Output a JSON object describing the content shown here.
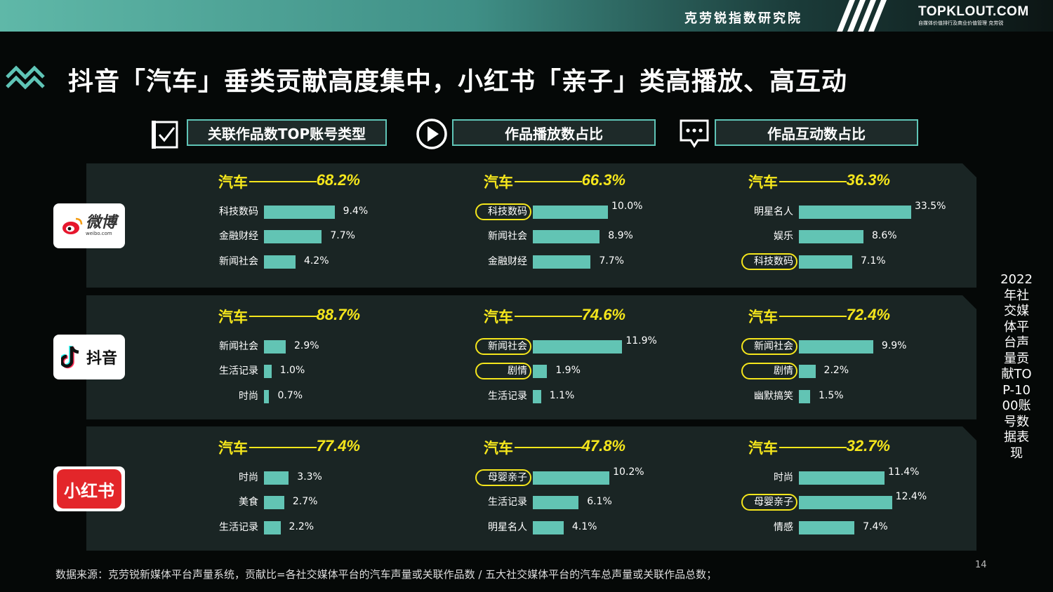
{
  "header": {
    "institute": "克劳锐指数研究院",
    "brand": "TOPKLOUT.COM",
    "brand_sub": "自媒体价值排行及商业价值管理 克劳锐"
  },
  "title": "抖音「汽车」垂类贡献高度集中，小红书「亲子」类高播放、高互动",
  "columns": [
    {
      "label": "关联作品数TOP账号类型",
      "icon": "checkbox-icon"
    },
    {
      "label": "作品播放数占比",
      "icon": "play-icon"
    },
    {
      "label": "作品互动数占比",
      "icon": "chat-icon"
    }
  ],
  "platforms": [
    {
      "name": "微博",
      "logo_text": "微博",
      "logo_sub": "weibo.com",
      "color": "#e6162d"
    },
    {
      "name": "抖音",
      "logo_text": "抖音",
      "color": "#111111"
    },
    {
      "name": "小红书",
      "logo_text": "小红书",
      "color": "#e3262a"
    }
  ],
  "chart_data": {
    "type": "bar",
    "orientation": "horizontal",
    "unit": "%",
    "bar_color": "#62c4b4",
    "highlight_color": "#f5e61c",
    "rows": [
      {
        "platform": "微博",
        "cells": [
          {
            "column": "关联作品数TOP账号类型",
            "headline": {
              "category": "汽车",
              "value": "68.2%"
            },
            "items": [
              {
                "label": "科技数码",
                "value": 9.4,
                "text": "9.4%"
              },
              {
                "label": "金融财经",
                "value": 7.7,
                "text": "7.7%"
              },
              {
                "label": "新闻社会",
                "value": 4.2,
                "text": "4.2%"
              }
            ]
          },
          {
            "column": "作品播放数占比",
            "headline": {
              "category": "汽车",
              "value": "66.3%"
            },
            "items": [
              {
                "label": "科技数码",
                "value": 10.0,
                "text": "10.0%",
                "highlight": true
              },
              {
                "label": "新闻社会",
                "value": 8.9,
                "text": "8.9%"
              },
              {
                "label": "金融财经",
                "value": 7.7,
                "text": "7.7%"
              }
            ]
          },
          {
            "column": "作品互动数占比",
            "headline": {
              "category": "汽车",
              "value": "36.3%"
            },
            "items": [
              {
                "label": "明星名人",
                "value": 33.5,
                "text": "33.5%"
              },
              {
                "label": "娱乐",
                "value": 8.6,
                "text": "8.6%"
              },
              {
                "label": "科技数码",
                "value": 7.1,
                "text": "7.1%",
                "highlight": true
              }
            ]
          }
        ]
      },
      {
        "platform": "抖音",
        "cells": [
          {
            "column": "关联作品数TOP账号类型",
            "headline": {
              "category": "汽车",
              "value": "88.7%"
            },
            "items": [
              {
                "label": "新闻社会",
                "value": 2.9,
                "text": "2.9%"
              },
              {
                "label": "生活记录",
                "value": 1.0,
                "text": "1.0%"
              },
              {
                "label": "时尚",
                "value": 0.7,
                "text": "0.7%"
              }
            ]
          },
          {
            "column": "作品播放数占比",
            "headline": {
              "category": "汽车",
              "value": "74.6%"
            },
            "items": [
              {
                "label": "新闻社会",
                "value": 11.9,
                "text": "11.9%",
                "highlight": true
              },
              {
                "label": "剧情",
                "value": 1.9,
                "text": "1.9%",
                "highlight": true
              },
              {
                "label": "生活记录",
                "value": 1.1,
                "text": "1.1%"
              }
            ]
          },
          {
            "column": "作品互动数占比",
            "headline": {
              "category": "汽车",
              "value": "72.4%"
            },
            "items": [
              {
                "label": "新闻社会",
                "value": 9.9,
                "text": "9.9%",
                "highlight": true
              },
              {
                "label": "剧情",
                "value": 2.2,
                "text": "2.2%",
                "highlight": true
              },
              {
                "label": "幽默搞笑",
                "value": 1.5,
                "text": "1.5%"
              }
            ]
          }
        ]
      },
      {
        "platform": "小红书",
        "cells": [
          {
            "column": "关联作品数TOP账号类型",
            "headline": {
              "category": "汽车",
              "value": "77.4%"
            },
            "items": [
              {
                "label": "时尚",
                "value": 3.3,
                "text": "3.3%"
              },
              {
                "label": "美食",
                "value": 2.7,
                "text": "2.7%"
              },
              {
                "label": "生活记录",
                "value": 2.2,
                "text": "2.2%"
              }
            ]
          },
          {
            "column": "作品播放数占比",
            "headline": {
              "category": "汽车",
              "value": "47.8%"
            },
            "items": [
              {
                "label": "母婴亲子",
                "value": 10.2,
                "text": "10.2%",
                "highlight": true
              },
              {
                "label": "生活记录",
                "value": 6.1,
                "text": "6.1%"
              },
              {
                "label": "明星名人",
                "value": 4.1,
                "text": "4.1%"
              }
            ]
          },
          {
            "column": "作品互动数占比",
            "headline": {
              "category": "汽车",
              "value": "32.7%"
            },
            "items": [
              {
                "label": "时尚",
                "value": 11.4,
                "text": "11.4%"
              },
              {
                "label": "母婴亲子",
                "value": 12.4,
                "text": "12.4%",
                "highlight": true
              },
              {
                "label": "情感",
                "value": 7.4,
                "text": "7.4%"
              }
            ]
          }
        ]
      }
    ]
  },
  "side_text": "2022年社交媒体平台声量贡献TOP-1000账号数据表现",
  "page_number": "14",
  "source": "数据来源：克劳锐新媒体平台声量系统，贡献比=各社交媒体平台的汽车声量或关联作品数 / 五大社交媒体平台的汽车总声量或关联作品总数；"
}
